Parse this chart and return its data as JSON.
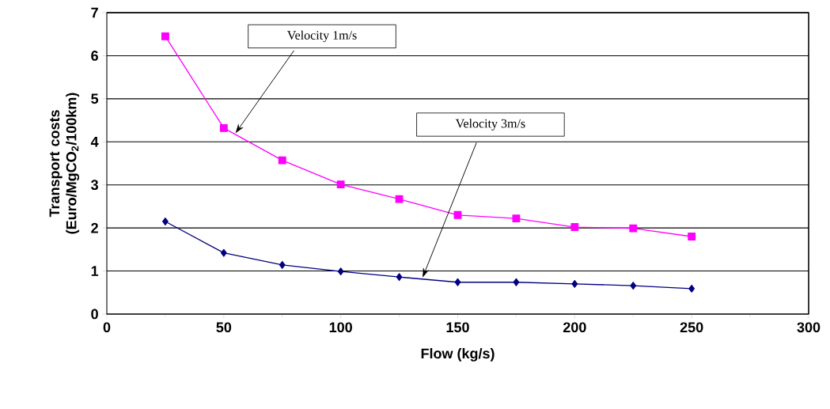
{
  "chart_data": {
    "type": "line",
    "xlabel": "Flow (kg/s)",
    "ylabel": "Transport costs (Euro/MgCO$_{2}$/100km)",
    "x": [
      25,
      50,
      75,
      100,
      125,
      150,
      175,
      200,
      225,
      250
    ],
    "series": [
      {
        "color": "#ff00ff",
        "marker": "square",
        "values": [
          6.45,
          4.32,
          3.57,
          3.01,
          2.67,
          2.3,
          2.22,
          2.02,
          1.99,
          1.8
        ]
      },
      {
        "color": "#000080",
        "marker": "diamond",
        "values": [
          2.15,
          1.42,
          1.14,
          0.99,
          0.86,
          0.74,
          0.74,
          0.7,
          0.66,
          0.59
        ]
      }
    ],
    "xlim": [
      0,
      300
    ],
    "xticks": [
      0,
      50,
      100,
      150,
      200,
      250,
      300
    ],
    "ylim": [
      0,
      7
    ],
    "yticks": [
      0,
      1,
      2,
      3,
      4,
      5,
      6,
      7
    ],
    "grid": "y",
    "line_style": "solid",
    "annotations": [
      {
        "text": "Velocity 1m/s",
        "x": 55,
        "y": 4.2
      },
      {
        "text": "Velocity 3m/s",
        "x": 135,
        "y": 0.85
      }
    ]
  }
}
